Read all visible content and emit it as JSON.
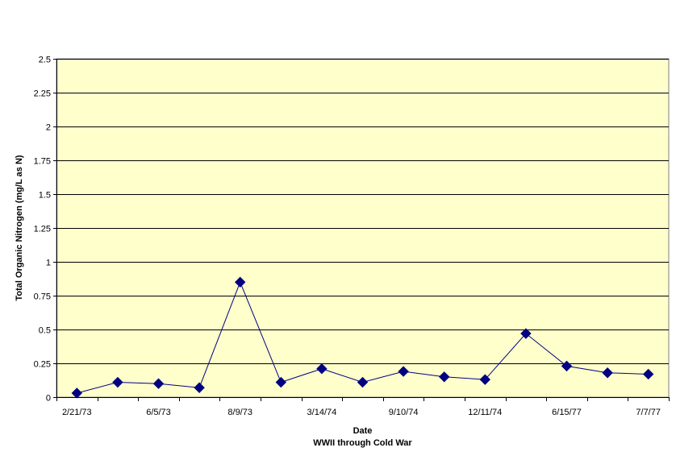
{
  "chart_data": {
    "type": "line",
    "xlabel": "Date",
    "xlabel_sub": "WWII through Cold War",
    "ylabel": "Total Organic Nitrogen (mg/L as N)",
    "ylim": [
      0,
      2.5
    ],
    "yticks": [
      0,
      0.25,
      0.5,
      0.75,
      1,
      1.25,
      1.5,
      1.75,
      2,
      2.25,
      2.5
    ],
    "ytick_labels": [
      "0",
      "0.25",
      "0.5",
      "0.75",
      "1",
      "1.25",
      "1.5",
      "1.75",
      "2",
      "2.25",
      "2.5"
    ],
    "x_tick_labels": [
      "2/21/73",
      "6/5/73",
      "8/9/73",
      "3/14/74",
      "9/10/74",
      "12/11/74",
      "6/15/77",
      "7/7/77"
    ],
    "grid": "horizontal",
    "legend": "none",
    "colors": {
      "plot_background": "#ffffcc",
      "series": "#000080",
      "grid": "#000000"
    },
    "series": [
      {
        "values": [
          0.03,
          0.11,
          0.1,
          0.07,
          0.85,
          0.11,
          0.21,
          0.11,
          0.19,
          0.15,
          0.13,
          0.47,
          0.23,
          0.18,
          0.17
        ]
      }
    ]
  }
}
